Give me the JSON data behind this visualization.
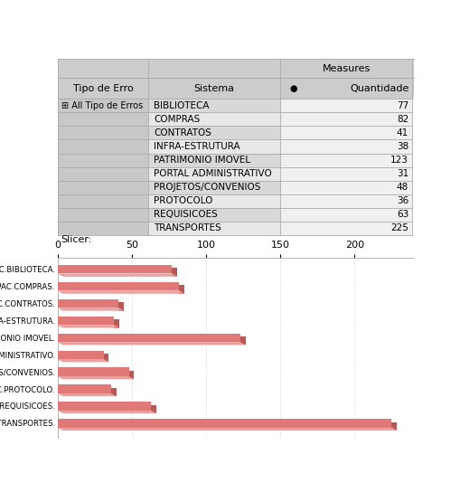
{
  "systems": [
    "BIBLIOTECA",
    "COMPRAS",
    "CONTRATOS",
    "INFRA-ESTRUTURA",
    "PATRIMONIO IMOVEL",
    "PORTAL ADMINISTRATIVO",
    "PROJETOS/CONVENIOS",
    "PROTOCOLO",
    "REQUISICOES",
    "TRANSPORTES"
  ],
  "values": [
    77,
    82,
    41,
    38,
    123,
    31,
    48,
    36,
    63,
    225
  ],
  "bar_color": "#e07878",
  "bar_color_dark": "#b85858",
  "bar_color_top": "#eba0a0",
  "fig_bg": "#ffffff",
  "table_col0_bg": "#c8c8c8",
  "table_col1_bg_even": "#d8d8d8",
  "table_col1_bg_odd": "#e8e8e8",
  "table_val_bg": "#f0f0f0",
  "table_header_bg": "#cccccc",
  "border_color": "#aaaaaa",
  "measures_label": "Measures",
  "tipo_label": "Tipo de Erro",
  "sistema_label": "Sistema",
  "quantidade_label": "Quantidade",
  "all_tipo": "All Tipo de Erros",
  "slicer_label": "Slicer:",
  "chart_labels": [
    "All Tipo de Erros.SIPAC.BIBLIOTECA.",
    "All Tipo de Erros.SIPAC.COMPRAS.",
    "All Tipo de Erros.SIPAC.CONTRATOS.",
    "All Tipo de Erros.SIPAC.INFRA-ESTRUTURA.",
    "All Tipo de Erros.SIPAC.PATRIMONIO IMOVEL.",
    "All Tipo de Erros.SIPAC.PORTAL ADMINISTRATIVO.",
    "All Tipo de Erros.SIPAC.PROJETOS/CONVENIOS.",
    "All Tipo de Erros.SIPAC.PROTOCOLO.",
    "All Tipo de Erros.SIPAC.REQUISICOES.",
    "All Tipo de Erros.SIPAC.TRANSPORTES."
  ],
  "x_ticks": [
    0,
    50,
    100,
    150,
    200
  ],
  "xlim": [
    0,
    240
  ],
  "grid_color": "#dddddd"
}
